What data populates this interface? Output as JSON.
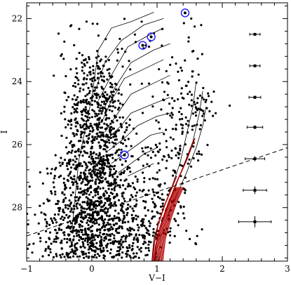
{
  "chart_data": {
    "type": "scatter",
    "title": "",
    "xlabel": "V−I",
    "ylabel": "I",
    "xlim": [
      -1,
      3
    ],
    "ylim": [
      29.7,
      21.5
    ],
    "y_inverted": true,
    "grid": false,
    "legend": "none",
    "x_ticks": [
      -1,
      0,
      1,
      2,
      3
    ],
    "x_tick_labels": [
      "−1",
      "0",
      "1",
      "2",
      "3"
    ],
    "y_ticks": [
      22,
      24,
      26,
      28
    ],
    "y_tick_labels": [
      "22",
      "24",
      "26",
      "28"
    ],
    "colors": {
      "points": "#000000",
      "isochrones": "#000000",
      "rgb_isochrones": "#b00000",
      "highlight_circles": "#1a1aff"
    },
    "highlighted_stars": [
      {
        "x": 1.43,
        "y": 21.82
      },
      {
        "x": 0.91,
        "y": 22.58
      },
      {
        "x": 0.78,
        "y": 22.85
      },
      {
        "x": 0.5,
        "y": 26.33
      }
    ],
    "completeness_limit": {
      "style": "dashed",
      "points": [
        [
          -1.0,
          28.9
        ],
        [
          3.0,
          26.1
        ]
      ]
    },
    "error_bars": [
      {
        "x": 2.5,
        "y": 22.5,
        "xerr": 0.08,
        "yerr": 0.03
      },
      {
        "x": 2.5,
        "y": 23.5,
        "xerr": 0.08,
        "yerr": 0.04
      },
      {
        "x": 2.5,
        "y": 24.5,
        "xerr": 0.09,
        "yerr": 0.05
      },
      {
        "x": 2.5,
        "y": 25.45,
        "xerr": 0.12,
        "yerr": 0.06
      },
      {
        "x": 2.5,
        "y": 26.45,
        "xerr": 0.15,
        "yerr": 0.08
      },
      {
        "x": 2.5,
        "y": 27.45,
        "xerr": 0.18,
        "yerr": 0.12
      },
      {
        "x": 2.5,
        "y": 28.45,
        "xerr": 0.25,
        "yerr": 0.18
      }
    ],
    "blue_loop_isochrones": [
      [
        [
          0.95,
          21.8
        ],
        [
          0.6,
          22.1
        ],
        [
          0.3,
          22.3
        ],
        [
          0.1,
          23.0
        ],
        [
          0.0,
          24.5
        ],
        [
          -0.1,
          25.5
        ],
        [
          -0.2,
          26.5
        ],
        [
          -0.25,
          27.5
        ],
        [
          -0.3,
          28.6
        ]
      ],
      [
        [
          1.1,
          22.0
        ],
        [
          0.8,
          22.2
        ],
        [
          0.45,
          22.7
        ],
        [
          0.2,
          23.4
        ],
        [
          0.05,
          24.3
        ]
      ],
      [
        [
          1.1,
          22.3
        ],
        [
          0.9,
          22.5
        ],
        [
          0.55,
          22.9
        ],
        [
          0.3,
          23.8
        ],
        [
          0.1,
          24.6
        ]
      ],
      [
        [
          1.2,
          22.8
        ],
        [
          0.95,
          23.0
        ],
        [
          0.6,
          23.4
        ],
        [
          0.35,
          24.2
        ],
        [
          0.15,
          25.0
        ]
      ],
      [
        [
          1.1,
          23.3
        ],
        [
          0.9,
          23.5
        ],
        [
          0.5,
          23.9
        ],
        [
          0.3,
          24.6
        ],
        [
          0.15,
          25.3
        ]
      ],
      [
        [
          1.2,
          23.8
        ],
        [
          1.0,
          24.0
        ],
        [
          0.6,
          24.4
        ],
        [
          0.4,
          25.0
        ],
        [
          0.2,
          25.6
        ]
      ],
      [
        [
          1.2,
          24.5
        ],
        [
          0.95,
          24.7
        ],
        [
          0.6,
          25.0
        ],
        [
          0.45,
          25.4
        ],
        [
          0.2,
          25.9
        ]
      ],
      [
        [
          1.2,
          25.0
        ],
        [
          1.0,
          25.1
        ],
        [
          0.7,
          25.4
        ],
        [
          0.5,
          25.8
        ],
        [
          0.25,
          26.2
        ]
      ],
      [
        [
          1.1,
          25.6
        ],
        [
          0.9,
          25.7
        ],
        [
          0.7,
          26.0
        ],
        [
          0.5,
          26.3
        ],
        [
          0.3,
          26.6
        ]
      ],
      [
        [
          1.0,
          26.1
        ],
        [
          0.8,
          26.3
        ],
        [
          0.6,
          26.6
        ],
        [
          0.4,
          26.9
        ]
      ],
      [
        [
          0.95,
          26.6
        ],
        [
          0.75,
          26.8
        ],
        [
          0.55,
          27.0
        ]
      ]
    ],
    "rgb_isochrones": [
      [
        [
          0.92,
          29.7
        ],
        [
          0.95,
          29.0
        ],
        [
          1.05,
          28.3
        ],
        [
          1.2,
          27.5
        ],
        [
          1.35,
          26.6
        ],
        [
          1.45,
          25.7
        ],
        [
          1.55,
          24.8
        ],
        [
          1.6,
          24.0
        ]
      ],
      [
        [
          0.97,
          29.7
        ],
        [
          1.0,
          29.0
        ],
        [
          1.1,
          28.3
        ],
        [
          1.25,
          27.5
        ],
        [
          1.4,
          26.7
        ],
        [
          1.55,
          25.9
        ],
        [
          1.65,
          25.0
        ],
        [
          1.7,
          24.3
        ]
      ],
      [
        [
          1.02,
          29.7
        ],
        [
          1.05,
          29.0
        ],
        [
          1.15,
          28.3
        ],
        [
          1.3,
          27.6
        ],
        [
          1.45,
          26.9
        ],
        [
          1.6,
          26.1
        ],
        [
          1.7,
          25.4
        ],
        [
          1.75,
          24.8
        ]
      ],
      [
        [
          0.95,
          29.7
        ],
        [
          0.98,
          29.2
        ],
        [
          1.05,
          28.6
        ],
        [
          1.15,
          28.0
        ],
        [
          1.3,
          27.2
        ],
        [
          1.45,
          26.5
        ],
        [
          1.58,
          25.8
        ]
      ],
      [
        [
          0.93,
          29.7
        ],
        [
          0.96,
          29.1
        ],
        [
          1.02,
          28.5
        ],
        [
          1.12,
          27.9
        ],
        [
          1.22,
          27.4
        ],
        [
          1.3,
          27.0
        ]
      ]
    ]
  }
}
